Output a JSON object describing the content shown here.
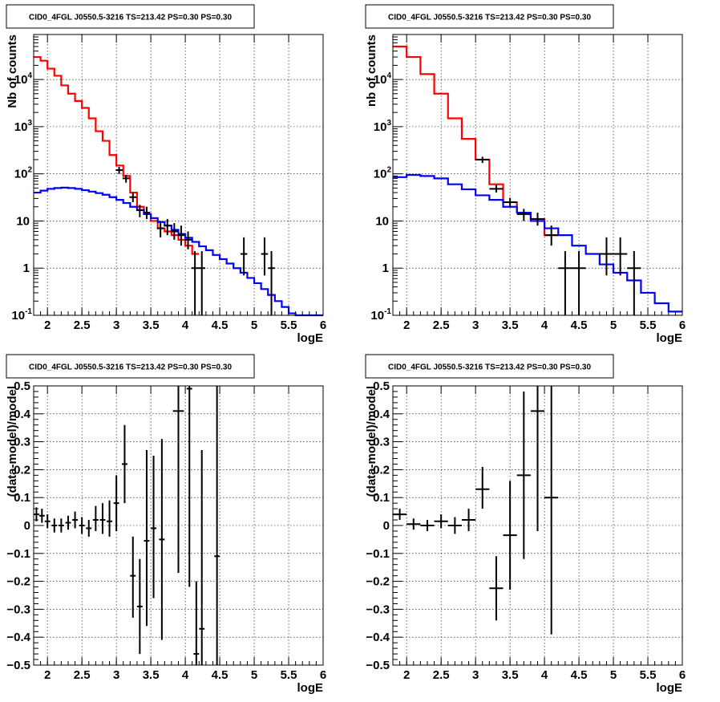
{
  "chart_data": [
    {
      "type": "line",
      "title": "CID0_4FGL J0550.5-3216 TS=213.42 PS=0.30 PS=0.30",
      "xlabel": "logE",
      "ylabel": "Nb of counts",
      "xlim": [
        1.8,
        6.0
      ],
      "ylim": [
        0.1,
        90000
      ],
      "yscale": "log",
      "grid": true,
      "x_ticks": [
        "2",
        "2.5",
        "3",
        "3.5",
        "4",
        "4.5",
        "5",
        "5.5",
        "6"
      ],
      "y_ticks": [
        {
          "base": "10",
          "exp": "-1"
        },
        {
          "base": "1",
          "exp": ""
        },
        {
          "base": "10",
          "exp": ""
        },
        {
          "base": "10",
          "exp": "2"
        },
        {
          "base": "10",
          "exp": "3"
        },
        {
          "base": "10",
          "exp": "4"
        }
      ],
      "series": [
        {
          "color": "#ff0000",
          "style": "step",
          "edges": [
            1.8,
            1.9,
            2.0,
            2.1,
            2.2,
            2.3,
            2.4,
            2.5,
            2.6,
            2.7,
            2.8,
            2.9,
            3.0,
            3.1,
            3.2,
            3.3,
            3.4,
            3.5,
            3.6,
            3.7,
            3.8,
            3.9,
            4.0,
            4.1,
            4.2
          ],
          "values": [
            30000,
            25000,
            17000,
            12000,
            7500,
            5000,
            3500,
            2500,
            1500,
            800,
            500,
            250,
            150,
            90,
            40,
            20,
            14,
            10,
            7,
            6,
            5,
            4,
            3,
            2
          ]
        },
        {
          "color": "#0000ff",
          "style": "step",
          "edges": [
            1.8,
            1.9,
            2.0,
            2.1,
            2.2,
            2.3,
            2.4,
            2.5,
            2.6,
            2.7,
            2.8,
            2.9,
            3.0,
            3.1,
            3.2,
            3.3,
            3.4,
            3.5,
            3.6,
            3.7,
            3.8,
            3.9,
            4.0,
            4.1,
            4.2,
            4.3,
            4.4,
            4.5,
            4.6,
            4.7,
            4.8,
            4.9,
            5.0,
            5.1,
            5.2,
            5.3,
            5.4,
            5.5,
            5.6,
            5.7,
            5.8,
            5.9,
            6.0
          ],
          "values": [
            40,
            44,
            48,
            50,
            51,
            50,
            48,
            45,
            42,
            39,
            36,
            32,
            28,
            24,
            20,
            17,
            14,
            11.5,
            9.5,
            8,
            6.5,
            5.3,
            4.4,
            3.6,
            2.9,
            2.4,
            1.9,
            1.55,
            1.25,
            1.0,
            0.8,
            0.62,
            0.48,
            0.36,
            0.27,
            0.2,
            0.15,
            0.11,
            0.1,
            0.1,
            0.1,
            0.1
          ]
        }
      ],
      "points": [
        {
          "x": 3.04,
          "y": 120,
          "xerr": 0.05,
          "ylo": 100,
          "yhi": 140
        },
        {
          "x": 3.14,
          "y": 80,
          "xerr": 0.05,
          "ylo": 65,
          "yhi": 95
        },
        {
          "x": 3.24,
          "y": 32,
          "xerr": 0.05,
          "ylo": 25,
          "yhi": 40
        },
        {
          "x": 3.34,
          "y": 17,
          "xerr": 0.05,
          "ylo": 12,
          "yhi": 22
        },
        {
          "x": 3.44,
          "y": 15,
          "xerr": 0.05,
          "ylo": 11,
          "yhi": 20
        },
        {
          "x": 3.64,
          "y": 7,
          "xerr": 0.05,
          "ylo": 4.5,
          "yhi": 10
        },
        {
          "x": 3.74,
          "y": 8,
          "xerr": 0.05,
          "ylo": 5,
          "yhi": 11
        },
        {
          "x": 3.84,
          "y": 6,
          "xerr": 0.05,
          "ylo": 4,
          "yhi": 9
        },
        {
          "x": 3.94,
          "y": 5,
          "xerr": 0.05,
          "ylo": 3,
          "yhi": 8
        },
        {
          "x": 4.04,
          "y": 4,
          "xerr": 0.05,
          "ylo": 2.5,
          "yhi": 6
        },
        {
          "x": 4.14,
          "y": 1,
          "xerr": 0.05,
          "ylo": 0.1,
          "yhi": 2.3
        },
        {
          "x": 4.24,
          "y": 1,
          "xerr": 0.05,
          "ylo": 0.1,
          "yhi": 2.3
        },
        {
          "x": 4.85,
          "y": 2,
          "xerr": 0.05,
          "ylo": 0.7,
          "yhi": 4.5
        },
        {
          "x": 5.15,
          "y": 2,
          "xerr": 0.05,
          "ylo": 0.7,
          "yhi": 4.5
        },
        {
          "x": 5.25,
          "y": 1,
          "xerr": 0.05,
          "ylo": 0.1,
          "yhi": 2.3
        }
      ]
    },
    {
      "type": "line",
      "title": "CID0_4FGL J0550.5-3216 TS=213.42 PS=0.30 PS=0.30",
      "xlabel": "logE",
      "ylabel": "nb of counts",
      "xlim": [
        1.8,
        6.0
      ],
      "ylim": [
        0.1,
        90000
      ],
      "yscale": "log",
      "grid": true,
      "x_ticks": [
        "2",
        "2.5",
        "3",
        "3.5",
        "4",
        "4.5",
        "5",
        "5.5",
        "6"
      ],
      "y_ticks": [
        {
          "base": "10",
          "exp": "-1"
        },
        {
          "base": "1",
          "exp": ""
        },
        {
          "base": "10",
          "exp": ""
        },
        {
          "base": "10",
          "exp": "2"
        },
        {
          "base": "10",
          "exp": "3"
        },
        {
          "base": "10",
          "exp": "4"
        }
      ],
      "series": [
        {
          "color": "#ff0000",
          "style": "step",
          "edges": [
            1.8,
            2.0,
            2.2,
            2.4,
            2.6,
            2.8,
            3.0,
            3.2,
            3.4,
            3.6,
            3.8,
            4.0,
            4.2
          ],
          "values": [
            50000,
            30000,
            13000,
            5000,
            1500,
            550,
            200,
            60,
            25,
            15,
            11,
            5
          ]
        },
        {
          "color": "#0000ff",
          "style": "step",
          "edges": [
            1.8,
            2.0,
            2.2,
            2.4,
            2.6,
            2.8,
            3.0,
            3.2,
            3.4,
            3.6,
            3.8,
            4.0,
            4.2,
            4.4,
            4.6,
            4.8,
            5.0,
            5.2,
            5.4,
            5.6,
            5.8,
            6.0
          ],
          "values": [
            85,
            95,
            90,
            80,
            60,
            47,
            35,
            28,
            20,
            15,
            10,
            7,
            5,
            3,
            2,
            1.2,
            0.8,
            0.55,
            0.3,
            0.18,
            0.12
          ]
        }
      ],
      "points": [
        {
          "x": 3.1,
          "y": 200,
          "xerr": 0.1,
          "ylo": 170,
          "yhi": 230
        },
        {
          "x": 3.3,
          "y": 48,
          "xerr": 0.1,
          "ylo": 40,
          "yhi": 58
        },
        {
          "x": 3.5,
          "y": 25,
          "xerr": 0.1,
          "ylo": 20,
          "yhi": 31
        },
        {
          "x": 3.7,
          "y": 14,
          "xerr": 0.1,
          "ylo": 10,
          "yhi": 18
        },
        {
          "x": 3.9,
          "y": 11,
          "xerr": 0.1,
          "ylo": 8,
          "yhi": 15
        },
        {
          "x": 4.1,
          "y": 5,
          "xerr": 0.1,
          "ylo": 3,
          "yhi": 8
        },
        {
          "x": 4.3,
          "y": 1,
          "xerr": 0.1,
          "ylo": 0.1,
          "yhi": 2.3
        },
        {
          "x": 4.5,
          "y": 1,
          "xerr": 0.1,
          "ylo": 0.1,
          "yhi": 2.3
        },
        {
          "x": 4.9,
          "y": 2,
          "xerr": 0.1,
          "ylo": 0.7,
          "yhi": 4.5
        },
        {
          "x": 5.1,
          "y": 2,
          "xerr": 0.1,
          "ylo": 0.7,
          "yhi": 4.5
        },
        {
          "x": 5.3,
          "y": 1,
          "xerr": 0.1,
          "ylo": 0.1,
          "yhi": 2.3
        }
      ]
    },
    {
      "type": "scatter",
      "title": "CID0_4FGL J0550.5-3216 TS=213.42 PS=0.30 PS=0.30",
      "xlabel": "logE",
      "ylabel": "(data-model)/model",
      "xlim": [
        1.8,
        6.0
      ],
      "ylim": [
        -0.5,
        0.5
      ],
      "yscale": "linear",
      "grid": true,
      "x_ticks": [
        "2",
        "2.5",
        "3",
        "3.5",
        "4",
        "4.5",
        "5",
        "5.5",
        "6"
      ],
      "y_ticks": [
        "−0.5",
        "−0.4",
        "−0.3",
        "−0.2",
        "−0.1",
        "0",
        "0.1",
        "0.2",
        "0.3",
        "0.4",
        "0.5"
      ],
      "points": [
        {
          "x": 1.84,
          "y": 0.04,
          "xerr": 0.04,
          "ylo": 0.015,
          "yhi": 0.065
        },
        {
          "x": 1.92,
          "y": 0.035,
          "xerr": 0.04,
          "ylo": 0.01,
          "yhi": 0.06
        },
        {
          "x": 2.0,
          "y": 0.015,
          "xerr": 0.04,
          "ylo": -0.01,
          "yhi": 0.04
        },
        {
          "x": 2.1,
          "y": 0.0,
          "xerr": 0.04,
          "ylo": -0.025,
          "yhi": 0.025
        },
        {
          "x": 2.2,
          "y": 0.0,
          "xerr": 0.04,
          "ylo": -0.025,
          "yhi": 0.025
        },
        {
          "x": 2.3,
          "y": 0.01,
          "xerr": 0.04,
          "ylo": -0.015,
          "yhi": 0.035
        },
        {
          "x": 2.4,
          "y": 0.02,
          "xerr": 0.04,
          "ylo": -0.01,
          "yhi": 0.05
        },
        {
          "x": 2.5,
          "y": 0.0,
          "xerr": 0.04,
          "ylo": -0.03,
          "yhi": 0.03
        },
        {
          "x": 2.6,
          "y": -0.01,
          "xerr": 0.04,
          "ylo": -0.04,
          "yhi": 0.02
        },
        {
          "x": 2.7,
          "y": 0.02,
          "xerr": 0.04,
          "ylo": -0.02,
          "yhi": 0.07
        },
        {
          "x": 2.8,
          "y": 0.02,
          "xerr": 0.04,
          "ylo": -0.03,
          "yhi": 0.08
        },
        {
          "x": 2.9,
          "y": 0.015,
          "xerr": 0.04,
          "ylo": -0.04,
          "yhi": 0.09
        },
        {
          "x": 3.0,
          "y": 0.08,
          "xerr": 0.04,
          "ylo": -0.02,
          "yhi": 0.18
        },
        {
          "x": 3.12,
          "y": 0.22,
          "xerr": 0.04,
          "ylo": 0.08,
          "yhi": 0.36
        },
        {
          "x": 3.24,
          "y": -0.18,
          "xerr": 0.04,
          "ylo": -0.33,
          "yhi": -0.04
        },
        {
          "x": 3.34,
          "y": -0.29,
          "xerr": 0.04,
          "ylo": -0.46,
          "yhi": -0.12
        },
        {
          "x": 3.44,
          "y": -0.055,
          "xerr": 0.04,
          "ylo": -0.36,
          "yhi": 0.27
        },
        {
          "x": 3.54,
          "y": -0.01,
          "xerr": 0.04,
          "ylo": -0.26,
          "yhi": 0.25
        },
        {
          "x": 3.66,
          "y": -0.05,
          "xerr": 0.04,
          "ylo": -0.41,
          "yhi": 0.31
        },
        {
          "x": 3.9,
          "y": 0.41,
          "xerr": 0.08,
          "ylo": -0.17,
          "yhi": 0.5
        },
        {
          "x": 4.06,
          "y": 0.49,
          "xerr": 0.04,
          "ylo": -0.22,
          "yhi": 0.5
        },
        {
          "x": 4.16,
          "y": -0.46,
          "xerr": 0.04,
          "ylo": -0.5,
          "yhi": -0.2
        },
        {
          "x": 4.24,
          "y": -0.37,
          "xerr": 0.04,
          "ylo": -0.5,
          "yhi": 0.27
        },
        {
          "x": 4.46,
          "y": -0.11,
          "xerr": 0.04,
          "ylo": -0.5,
          "yhi": 0.5
        }
      ]
    },
    {
      "type": "scatter",
      "title": "CID0_4FGL J0550.5-3216 TS=213.42 PS=0.30 PS=0.30",
      "xlabel": "logE",
      "ylabel": "(data-model)/model",
      "xlim": [
        1.8,
        6.0
      ],
      "ylim": [
        -0.5,
        0.5
      ],
      "yscale": "linear",
      "grid": true,
      "x_ticks": [
        "2",
        "2.5",
        "3",
        "3.5",
        "4",
        "4.5",
        "5",
        "5.5",
        "6"
      ],
      "y_ticks": [
        "−0.5",
        "−0.4",
        "−0.3",
        "−0.2",
        "−0.1",
        "0",
        "0.1",
        "0.2",
        "0.3",
        "0.4",
        "0.5"
      ],
      "points": [
        {
          "x": 1.9,
          "y": 0.04,
          "xerr": 0.1,
          "ylo": 0.02,
          "yhi": 0.06
        },
        {
          "x": 2.1,
          "y": 0.005,
          "xerr": 0.1,
          "ylo": -0.015,
          "yhi": 0.025
        },
        {
          "x": 2.3,
          "y": 0.0,
          "xerr": 0.1,
          "ylo": -0.02,
          "yhi": 0.02
        },
        {
          "x": 2.5,
          "y": 0.015,
          "xerr": 0.1,
          "ylo": -0.01,
          "yhi": 0.04
        },
        {
          "x": 2.7,
          "y": 0.0,
          "xerr": 0.1,
          "ylo": -0.03,
          "yhi": 0.03
        },
        {
          "x": 2.9,
          "y": 0.02,
          "xerr": 0.1,
          "ylo": -0.02,
          "yhi": 0.06
        },
        {
          "x": 3.1,
          "y": 0.13,
          "xerr": 0.1,
          "ylo": 0.06,
          "yhi": 0.21
        },
        {
          "x": 3.3,
          "y": -0.225,
          "xerr": 0.1,
          "ylo": -0.34,
          "yhi": -0.11
        },
        {
          "x": 3.5,
          "y": -0.035,
          "xerr": 0.1,
          "ylo": -0.23,
          "yhi": 0.16
        },
        {
          "x": 3.7,
          "y": 0.18,
          "xerr": 0.1,
          "ylo": -0.12,
          "yhi": 0.48
        },
        {
          "x": 3.9,
          "y": 0.41,
          "xerr": 0.1,
          "ylo": -0.02,
          "yhi": 0.5
        },
        {
          "x": 4.1,
          "y": 0.1,
          "xerr": 0.1,
          "ylo": -0.39,
          "yhi": 0.5
        }
      ]
    }
  ]
}
